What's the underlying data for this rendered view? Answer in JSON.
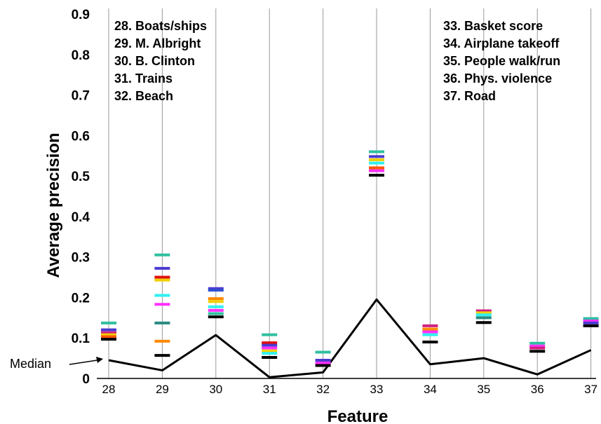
{
  "chart_data": {
    "type": "scatter",
    "xlabel": "Feature",
    "ylabel": "Average precision",
    "ylim": [
      0,
      0.9
    ],
    "y_ticks": [
      "0",
      "0.1",
      "0.2",
      "0.3",
      "0.4",
      "0.5",
      "0.6",
      "0.7",
      "0.8",
      "0.9"
    ],
    "categories": [
      "28",
      "29",
      "30",
      "31",
      "32",
      "33",
      "34",
      "35",
      "36",
      "37"
    ],
    "grid": "vertical lines at each feature",
    "legend_left": [
      "28. Boats/ships",
      "29. M. Albright",
      "30. B. Clinton",
      "31. Trains",
      "32. Beach"
    ],
    "legend_right": [
      "33. Basket score",
      "34. Airplane takeoff",
      "35. People walk/run",
      "36. Phys. violence",
      "37. Road"
    ],
    "median_label": "Median",
    "median": [
      0.045,
      0.02,
      0.107,
      0.003,
      0.015,
      0.195,
      0.035,
      0.05,
      0.01,
      0.07
    ],
    "runs": [
      [
        {
          "y": 0.137,
          "color": "#2fbfa0"
        },
        {
          "y": 0.12,
          "color": "#4a3ad0"
        },
        {
          "y": 0.113,
          "color": "#d02080"
        },
        {
          "y": 0.108,
          "color": "#f0d000"
        },
        {
          "y": 0.103,
          "color": "#ff5500"
        },
        {
          "y": 0.097,
          "color": "#000000"
        }
      ],
      [
        {
          "y": 0.305,
          "color": "#2fbfa0"
        },
        {
          "y": 0.272,
          "color": "#4a3ad0"
        },
        {
          "y": 0.25,
          "color": "#e01010"
        },
        {
          "y": 0.243,
          "color": "#f0d000"
        },
        {
          "y": 0.205,
          "color": "#30f0f0"
        },
        {
          "y": 0.183,
          "color": "#ff30ff"
        },
        {
          "y": 0.137,
          "color": "#2a8a80"
        },
        {
          "y": 0.092,
          "color": "#ff8800"
        },
        {
          "y": 0.057,
          "color": "#000000"
        }
      ],
      [
        {
          "y": 0.222,
          "color": "#4a3ad0"
        },
        {
          "y": 0.218,
          "color": "#3050d0"
        },
        {
          "y": 0.197,
          "color": "#ff8800"
        },
        {
          "y": 0.19,
          "color": "#f0d000"
        },
        {
          "y": 0.177,
          "color": "#30f0f0"
        },
        {
          "y": 0.168,
          "color": "#ff30ff"
        },
        {
          "y": 0.16,
          "color": "#2fbfa0"
        },
        {
          "y": 0.152,
          "color": "#000000"
        }
      ],
      [
        {
          "y": 0.108,
          "color": "#2fbfa0"
        },
        {
          "y": 0.088,
          "color": "#e01010"
        },
        {
          "y": 0.082,
          "color": "#4a3ad0"
        },
        {
          "y": 0.075,
          "color": "#ff30ff"
        },
        {
          "y": 0.068,
          "color": "#f0d000"
        },
        {
          "y": 0.062,
          "color": "#30f0f0"
        },
        {
          "y": 0.052,
          "color": "#000000"
        }
      ],
      [
        {
          "y": 0.065,
          "color": "#2fbfa0"
        },
        {
          "y": 0.045,
          "color": "#4a3ad0"
        },
        {
          "y": 0.038,
          "color": "#ff30ff"
        },
        {
          "y": 0.032,
          "color": "#000000"
        }
      ],
      [
        {
          "y": 0.56,
          "color": "#2fbfa0"
        },
        {
          "y": 0.548,
          "color": "#4a3ad0"
        },
        {
          "y": 0.54,
          "color": "#f0d000"
        },
        {
          "y": 0.532,
          "color": "#30f0f0"
        },
        {
          "y": 0.52,
          "color": "#ff5500"
        },
        {
          "y": 0.513,
          "color": "#ff30ff"
        },
        {
          "y": 0.502,
          "color": "#000000"
        }
      ],
      [
        {
          "y": 0.13,
          "color": "#d02080"
        },
        {
          "y": 0.122,
          "color": "#ff8800"
        },
        {
          "y": 0.115,
          "color": "#ff30ff"
        },
        {
          "y": 0.108,
          "color": "#30f0f0"
        },
        {
          "y": 0.09,
          "color": "#000000"
        }
      ],
      [
        {
          "y": 0.167,
          "color": "#d02080"
        },
        {
          "y": 0.162,
          "color": "#f0d000"
        },
        {
          "y": 0.157,
          "color": "#30f0f0"
        },
        {
          "y": 0.15,
          "color": "#2a8a80"
        },
        {
          "y": 0.138,
          "color": "#000000"
        }
      ],
      [
        {
          "y": 0.087,
          "color": "#2fbfa0"
        },
        {
          "y": 0.08,
          "color": "#ff30ff"
        },
        {
          "y": 0.075,
          "color": "#d02080"
        },
        {
          "y": 0.067,
          "color": "#000000"
        }
      ],
      [
        {
          "y": 0.148,
          "color": "#2fbfa0"
        },
        {
          "y": 0.142,
          "color": "#ff30ff"
        },
        {
          "y": 0.137,
          "color": "#4a3ad0"
        },
        {
          "y": 0.13,
          "color": "#000000"
        }
      ]
    ]
  }
}
